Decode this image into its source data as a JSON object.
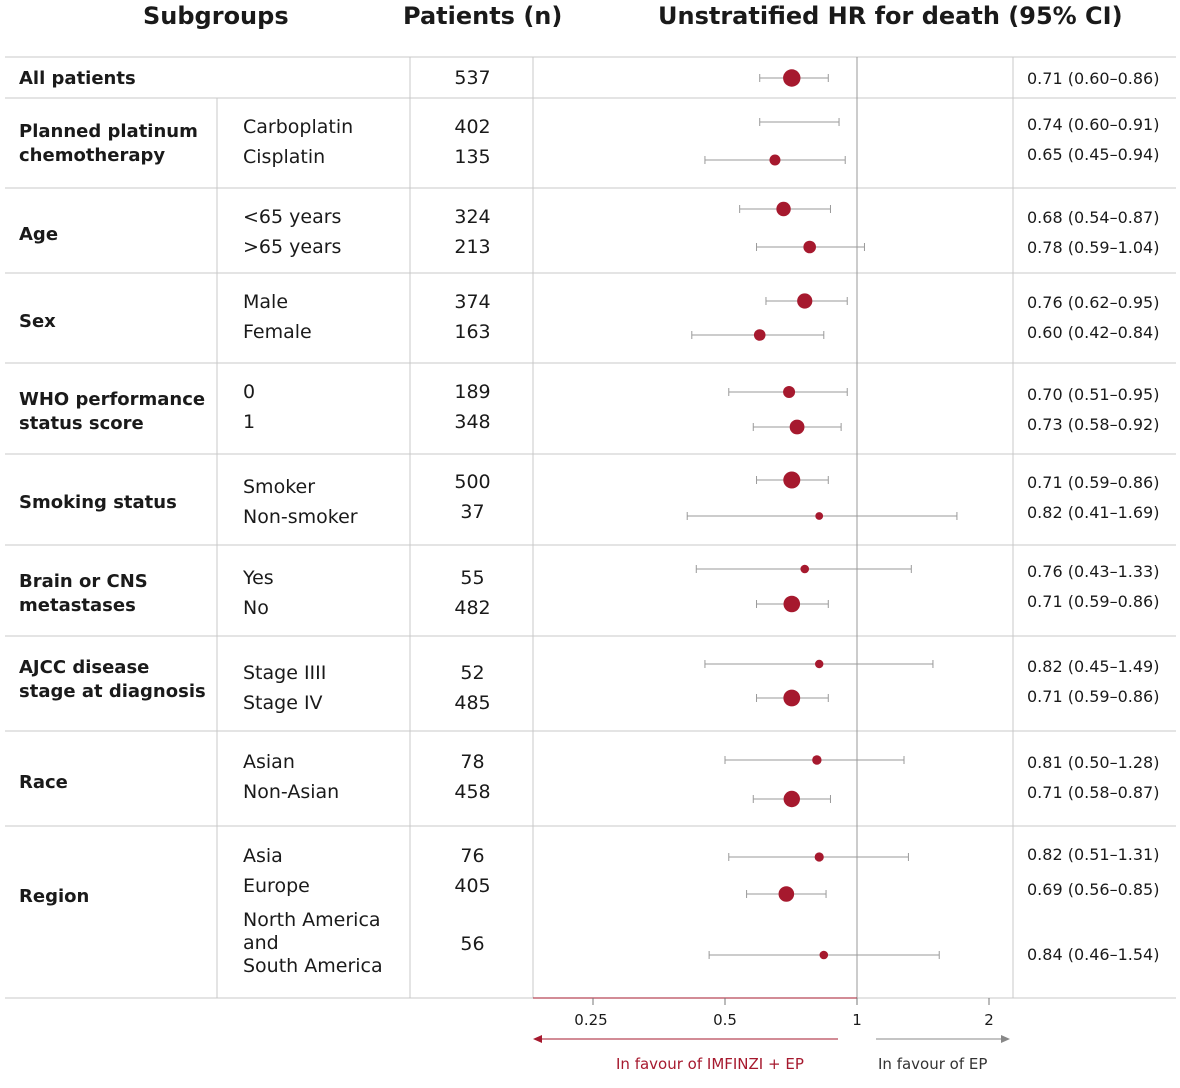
{
  "headers": {
    "subgroups": "Subgroups",
    "patients": "Patients (n)",
    "hr": "Unstratified HR for death (95% CI)"
  },
  "groups": [
    {
      "label": "All patients"
    },
    {
      "label": "Planned platinum\nchemotherapy"
    },
    {
      "label": "Age"
    },
    {
      "label": "Sex"
    },
    {
      "label": "WHO performance\nstatus score"
    },
    {
      "label": "Smoking status"
    },
    {
      "label": "Brain or CNS\nmetastases"
    },
    {
      "label": "AJCC disease\nstage at diagnosis"
    },
    {
      "label": "Race"
    },
    {
      "label": "Region"
    }
  ],
  "rows": [
    {
      "group": "All patients",
      "sub": "",
      "n": "537",
      "hr": 0.71,
      "lo": 0.6,
      "hi": 0.86,
      "hr_text": "0.71 (0.60–0.86)"
    },
    {
      "group": "Planned platinum chemotherapy",
      "sub": "Carboplatin",
      "n": "402",
      "hr": 0.74,
      "lo": 0.6,
      "hi": 0.91,
      "hr_text": "0.74 (0.60–0.91)"
    },
    {
      "group": "Planned platinum chemotherapy",
      "sub": "Cisplatin",
      "n": "135",
      "hr": 0.65,
      "lo": 0.45,
      "hi": 0.94,
      "hr_text": "0.65 (0.45–0.94)"
    },
    {
      "group": "Age",
      "sub": "<65 years",
      "n": "324",
      "hr": 0.68,
      "lo": 0.54,
      "hi": 0.87,
      "hr_text": "0.68 (0.54–0.87)"
    },
    {
      "group": "Age",
      "sub": ">65 years",
      "n": "213",
      "hr": 0.78,
      "lo": 0.59,
      "hi": 1.04,
      "hr_text": "0.78 (0.59–1.04)"
    },
    {
      "group": "Sex",
      "sub": "Male",
      "n": "374",
      "hr": 0.76,
      "lo": 0.62,
      "hi": 0.95,
      "hr_text": "0.76 (0.62–0.95)"
    },
    {
      "group": "Sex",
      "sub": "Female",
      "n": "163",
      "hr": 0.6,
      "lo": 0.42,
      "hi": 0.84,
      "hr_text": "0.60 (0.42–0.84)"
    },
    {
      "group": "WHO performance status score",
      "sub": "0",
      "n": "189",
      "hr": 0.7,
      "lo": 0.51,
      "hi": 0.95,
      "hr_text": "0.70 (0.51–0.95)"
    },
    {
      "group": "WHO performance status score",
      "sub": "1",
      "n": "348",
      "hr": 0.73,
      "lo": 0.58,
      "hi": 0.92,
      "hr_text": "0.73 (0.58–0.92)"
    },
    {
      "group": "Smoking status",
      "sub": "Smoker",
      "n": "500",
      "hr": 0.71,
      "lo": 0.59,
      "hi": 0.86,
      "hr_text": "0.71 (0.59–0.86)"
    },
    {
      "group": "Smoking status",
      "sub": "Non-smoker",
      "n": "37",
      "hr": 0.82,
      "lo": 0.41,
      "hi": 1.69,
      "hr_text": "0.82 (0.41–1.69)"
    },
    {
      "group": "Brain or CNS metastases",
      "sub": "Yes",
      "n": "55",
      "hr": 0.76,
      "lo": 0.43,
      "hi": 1.33,
      "hr_text": "0.76 (0.43–1.33)"
    },
    {
      "group": "Brain or CNS metastases",
      "sub": "No",
      "n": "482",
      "hr": 0.71,
      "lo": 0.59,
      "hi": 0.86,
      "hr_text": "0.71 (0.59–0.86)"
    },
    {
      "group": "AJCC disease stage at diagnosis",
      "sub": "Stage IIII",
      "n": "52",
      "hr": 0.82,
      "lo": 0.45,
      "hi": 1.49,
      "hr_text": "0.82 (0.45–1.49)"
    },
    {
      "group": "AJCC disease stage at diagnosis",
      "sub": "Stage IV",
      "n": "485",
      "hr": 0.71,
      "lo": 0.59,
      "hi": 0.86,
      "hr_text": "0.71 (0.59–0.86)"
    },
    {
      "group": "Race",
      "sub": "Asian",
      "n": "78",
      "hr": 0.81,
      "lo": 0.5,
      "hi": 1.28,
      "hr_text": "0.81 (0.50–1.28)"
    },
    {
      "group": "Race",
      "sub": "Non-Asian",
      "n": "458",
      "hr": 0.71,
      "lo": 0.58,
      "hi": 0.87,
      "hr_text": "0.71 (0.58–0.87)"
    },
    {
      "group": "Region",
      "sub": "Asia",
      "n": "76",
      "hr": 0.82,
      "lo": 0.51,
      "hi": 1.31,
      "hr_text": "0.82 (0.51–1.31)"
    },
    {
      "group": "Region",
      "sub": "Europe",
      "n": "405",
      "hr": 0.69,
      "lo": 0.56,
      "hi": 0.85,
      "hr_text": "0.69 (0.56–0.85)"
    },
    {
      "group": "Region",
      "sub": "North America\nand\nSouth America",
      "n": "56",
      "hr": 0.84,
      "lo": 0.46,
      "hi": 1.54,
      "hr_text": "0.84 (0.46–1.54)"
    }
  ],
  "axis": {
    "ticks": [
      "0.25",
      "0.5",
      "1",
      "2"
    ],
    "favour_left": "In favour of IMFINZI + EP",
    "favour_right": "In favour of EP"
  },
  "colors": {
    "marker": "#a6192e",
    "favour_left": "#a6192e",
    "ci_line": "#9a9a9a",
    "rule": "#c8c8c8"
  },
  "chart_data": {
    "type": "forest",
    "title": "Unstratified HR for death (95% CI)",
    "x_scale": "log",
    "xticks": [
      0.25,
      0.5,
      1,
      2
    ],
    "reference_line": 1,
    "xlim": [
      0.18,
      2.4
    ],
    "series": [
      {
        "values": [
          {
            "label": "All patients",
            "n": 537,
            "hr": 0.71,
            "lo": 0.6,
            "hi": 0.86
          },
          {
            "label": "Carboplatin",
            "n": 402,
            "hr": 0.74,
            "lo": 0.6,
            "hi": 0.91
          },
          {
            "label": "Cisplatin",
            "n": 135,
            "hr": 0.65,
            "lo": 0.45,
            "hi": 0.94
          },
          {
            "label": "<65 years",
            "n": 324,
            "hr": 0.68,
            "lo": 0.54,
            "hi": 0.87
          },
          {
            "label": ">65 years",
            "n": 213,
            "hr": 0.78,
            "lo": 0.59,
            "hi": 1.04
          },
          {
            "label": "Male",
            "n": 374,
            "hr": 0.76,
            "lo": 0.62,
            "hi": 0.95
          },
          {
            "label": "Female",
            "n": 163,
            "hr": 0.6,
            "lo": 0.42,
            "hi": 0.84
          },
          {
            "label": "0",
            "n": 189,
            "hr": 0.7,
            "lo": 0.51,
            "hi": 0.95
          },
          {
            "label": "1",
            "n": 348,
            "hr": 0.73,
            "lo": 0.58,
            "hi": 0.92
          },
          {
            "label": "Smoker",
            "n": 500,
            "hr": 0.71,
            "lo": 0.59,
            "hi": 0.86
          },
          {
            "label": "Non-smoker",
            "n": 37,
            "hr": 0.82,
            "lo": 0.41,
            "hi": 1.69
          },
          {
            "label": "Yes",
            "n": 55,
            "hr": 0.76,
            "lo": 0.43,
            "hi": 1.33
          },
          {
            "label": "No",
            "n": 482,
            "hr": 0.71,
            "lo": 0.59,
            "hi": 0.86
          },
          {
            "label": "Stage IIII",
            "n": 52,
            "hr": 0.82,
            "lo": 0.45,
            "hi": 1.49
          },
          {
            "label": "Stage IV",
            "n": 485,
            "hr": 0.71,
            "lo": 0.59,
            "hi": 0.86
          },
          {
            "label": "Asian",
            "n": 78,
            "hr": 0.81,
            "lo": 0.5,
            "hi": 1.28
          },
          {
            "label": "Non-Asian",
            "n": 458,
            "hr": 0.71,
            "lo": 0.58,
            "hi": 0.87
          },
          {
            "label": "Asia",
            "n": 76,
            "hr": 0.82,
            "lo": 0.51,
            "hi": 1.31
          },
          {
            "label": "Europe",
            "n": 405,
            "hr": 0.69,
            "lo": 0.56,
            "hi": 0.85
          },
          {
            "label": "North America and South America",
            "n": 56,
            "hr": 0.84,
            "lo": 0.46,
            "hi": 1.54
          }
        ]
      }
    ]
  }
}
